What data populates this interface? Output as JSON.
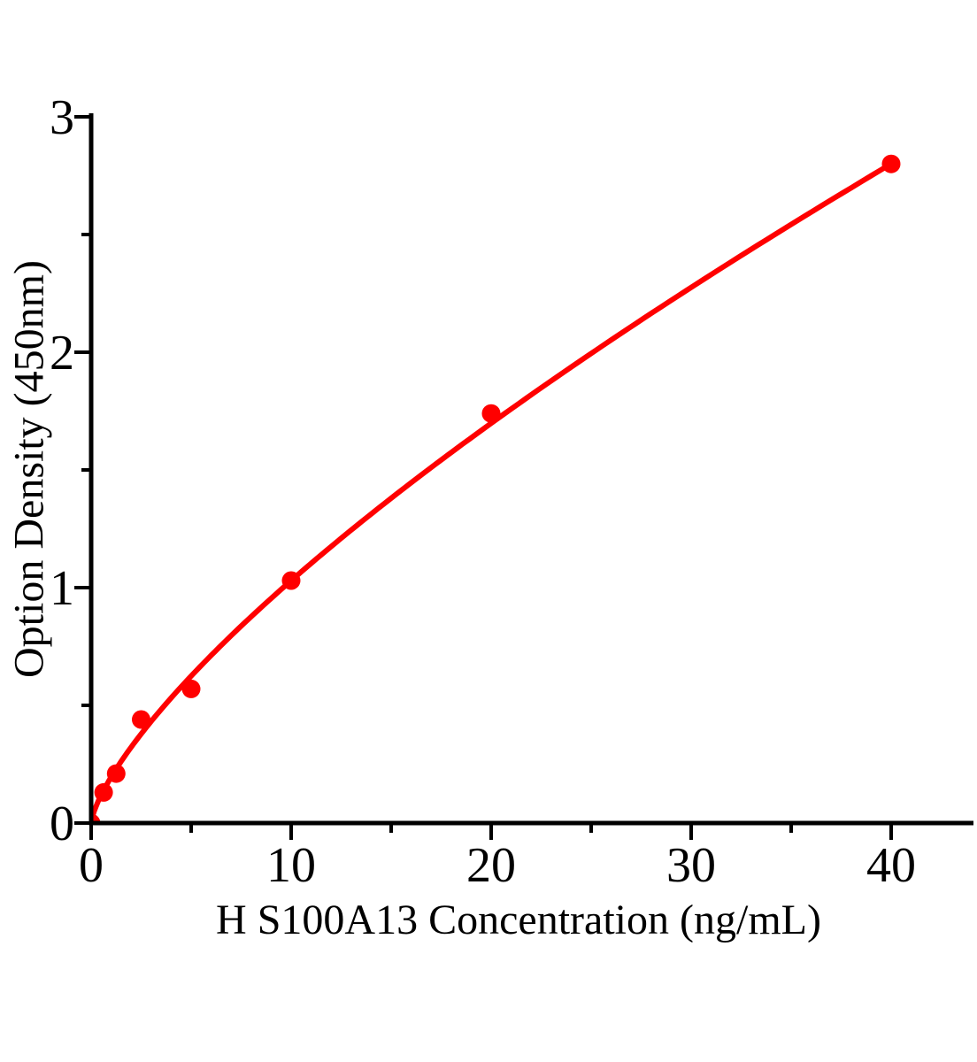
{
  "chart_data": {
    "type": "scatter",
    "title": "",
    "xlabel": "H S100A13 Concentration (ng/mL)",
    "ylabel": "Option Density (450nm)",
    "x": [
      0,
      0.625,
      1.25,
      2.5,
      5,
      10,
      20,
      40
    ],
    "y": [
      0,
      0.13,
      0.21,
      0.44,
      0.57,
      1.03,
      1.74,
      2.8
    ],
    "x_ticks": [
      0,
      10,
      20,
      30,
      40
    ],
    "x_minor_ticks": [
      5,
      15,
      25,
      35
    ],
    "y_ticks": [
      0,
      1,
      2,
      3
    ],
    "y_minor_ticks": [
      0.5,
      1.5,
      2.5
    ],
    "xlim": [
      0,
      44
    ],
    "ylim": [
      0,
      3
    ],
    "grid": false,
    "legend": "none",
    "marker_color": "#ff0000",
    "line_color": "#ff0000",
    "axis_color": "#000000",
    "fit_curve": {
      "type": "power",
      "a": 0.1955,
      "b": 0.7216,
      "x_range": [
        0,
        40
      ]
    }
  }
}
